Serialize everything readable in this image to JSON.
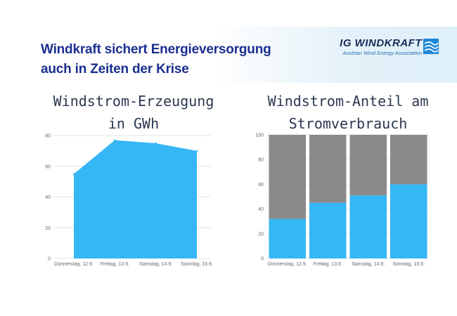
{
  "header": {
    "headline_line1": "Windkraft sichert Energieversorgung",
    "headline_line2": "auch in Zeiten der Krise",
    "logo_name": "IG WINDKRAFT",
    "logo_subtitle": "Austrian Wind Energy Association",
    "logo_icon": "wind-flag-icon"
  },
  "colors": {
    "headline": "#1b2f8f",
    "series_blue": "#35b6f5",
    "remainder_gray": "#8a8a8a",
    "grid": "#e4e4e4"
  },
  "chart_data": [
    {
      "type": "area",
      "title_line1": "Windstrom-Erzeugung",
      "title_line2": "in GWh",
      "categories": [
        "Donnerstag, 12.9.",
        "Freitag, 13.9.",
        "Samstag, 14.9.",
        "Sonntag, 15.9."
      ],
      "values": [
        55,
        77,
        75,
        70
      ],
      "yticks": [
        0,
        20,
        40,
        60,
        80
      ],
      "ylim": [
        0,
        80
      ],
      "grid": true
    },
    {
      "type": "bar",
      "stacked": true,
      "title_line1": "Windstrom-Anteil am",
      "title_line2": "Stromverbrauch",
      "categories": [
        "Donnerstag, 12.9.",
        "Freitag, 13.9.",
        "Samstag, 14.9.",
        "Sonntag, 15.9."
      ],
      "series": [
        {
          "values": [
            32,
            45,
            51,
            60
          ]
        },
        {
          "values": [
            68,
            55,
            49,
            40
          ]
        }
      ],
      "yticks": [
        0,
        20,
        40,
        60,
        80,
        100
      ],
      "ylim": [
        0,
        100
      ],
      "grid": true
    }
  ]
}
